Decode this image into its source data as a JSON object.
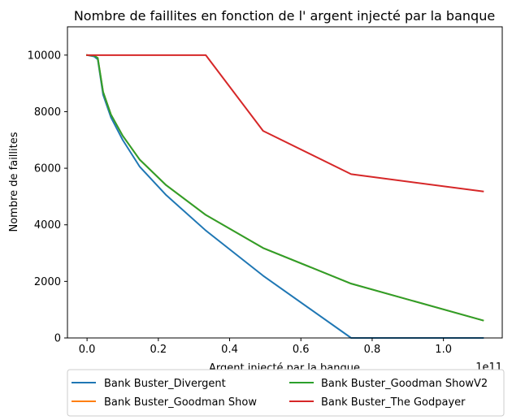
{
  "chart_data": {
    "type": "line",
    "title": "Nombre de faillites en fonction de l' argent injecté par la banque",
    "xlabel": "Argent injecté par la banque",
    "ylabel": "Nombre de faillites",
    "x_offset_label": "1e11",
    "xlim": [
      -0.055,
      1.165
    ],
    "ylim": [
      0,
      11000
    ],
    "x_ticks": [
      0.0,
      0.2,
      0.4,
      0.6,
      0.8,
      1.0
    ],
    "x_tick_labels": [
      "0.0",
      "0.2",
      "0.4",
      "0.6",
      "0.8",
      "1.0"
    ],
    "y_ticks": [
      0,
      2000,
      4000,
      6000,
      8000,
      10000
    ],
    "y_tick_labels": [
      "0",
      "2000",
      "4000",
      "6000",
      "8000",
      "10000"
    ],
    "grid": false,
    "legend_position": "below",
    "series": [
      {
        "name": "Bank Buster_Divergent",
        "color": "#1f77b4",
        "x": [
          0.0,
          0.02,
          0.03,
          0.045,
          0.067,
          0.1,
          0.148,
          0.222,
          0.333,
          0.494,
          0.741,
          1.111
        ],
        "y": [
          10000,
          9950,
          9850,
          8600,
          7800,
          7000,
          6050,
          5050,
          3800,
          2200,
          0,
          0
        ]
      },
      {
        "name": "Bank Buster_Goodman Show",
        "color": "#ff7f0e",
        "x": [
          0.0,
          0.02,
          0.03,
          0.045,
          0.067,
          0.1,
          0.148,
          0.222,
          0.333,
          0.494,
          0.741,
          1.111
        ],
        "y": [
          10000,
          9980,
          9900,
          8700,
          7900,
          7150,
          6300,
          5400,
          4350,
          3180,
          1920,
          620
        ]
      },
      {
        "name": "Bank Buster_Goodman ShowV2",
        "color": "#2ca02c",
        "x": [
          0.0,
          0.02,
          0.03,
          0.045,
          0.067,
          0.1,
          0.148,
          0.222,
          0.333,
          0.494,
          0.741,
          1.111
        ],
        "y": [
          10000,
          9980,
          9900,
          8700,
          7900,
          7150,
          6300,
          5400,
          4350,
          3180,
          1920,
          620
        ]
      },
      {
        "name": "Bank Buster_The Godpayer",
        "color": "#d62728",
        "x": [
          0.0,
          0.02,
          0.03,
          0.045,
          0.067,
          0.1,
          0.148,
          0.222,
          0.333,
          0.494,
          0.741,
          1.111
        ],
        "y": [
          10000,
          10000,
          10000,
          10000,
          10000,
          10000,
          10000,
          10000,
          10000,
          7320,
          5790,
          5180
        ]
      }
    ],
    "legend_columns": 2,
    "legend_order": [
      0,
      1,
      2,
      3
    ]
  }
}
